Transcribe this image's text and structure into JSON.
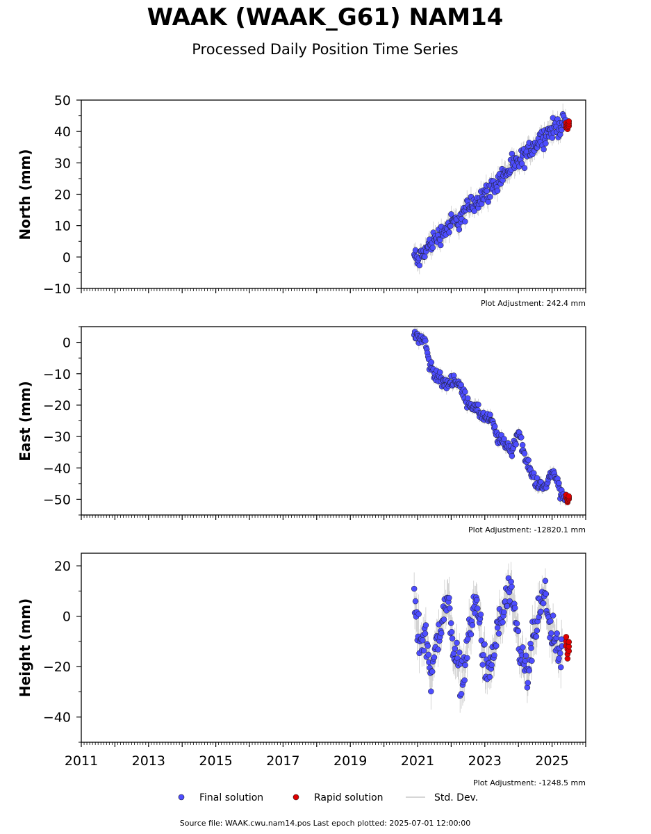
{
  "chart_data": {
    "type": "scatter",
    "title": "WAAK (WAAK_G61) NAM14",
    "subtitle": "Processed Daily Position Time Series",
    "xlim": [
      2011,
      2026
    ],
    "x_tick_labels": [
      "2011",
      "2013",
      "2015",
      "2017",
      "2019",
      "2021",
      "2023",
      "2025"
    ],
    "grid": false,
    "legend_placement": "bottom-center",
    "legend": {
      "final": "Final solution",
      "rapid": "Rapid solution",
      "std": "Std. Dev."
    },
    "colors": {
      "final": "#4d4dff",
      "rapid": "#e00000",
      "std": "#a0a0a0",
      "marker_edge": "#1a1a1a"
    },
    "panels": [
      {
        "ylabel": "North (mm)",
        "ylim": [
          -10,
          50
        ],
        "y_ticks": [
          -10,
          0,
          10,
          20,
          30,
          40,
          50
        ],
        "y_tick_labels": [
          "−10",
          "0",
          "10",
          "20",
          "30",
          "40",
          "50"
        ],
        "adjustment": "Plot Adjustment: 242.4 mm",
        "final_series": {
          "x": [
            2020.9,
            2021.0,
            2021.2,
            2021.4,
            2021.6,
            2021.8,
            2022.0,
            2022.2,
            2022.4,
            2022.6,
            2022.8,
            2023.0,
            2023.2,
            2023.4,
            2023.6,
            2023.8,
            2024.0,
            2024.2,
            2024.4,
            2024.6,
            2024.8,
            2025.0,
            2025.2,
            2025.4
          ],
          "y": [
            0.5,
            -1.5,
            1.5,
            4.5,
            6.5,
            8.5,
            10.5,
            11.5,
            14.0,
            16.5,
            18.5,
            20.0,
            21.5,
            24.5,
            26.5,
            28.5,
            30.0,
            32.0,
            35.0,
            37.0,
            39.0,
            40.5,
            42.0,
            42.5
          ]
        },
        "rapid_series": {
          "x": [
            2025.42,
            2025.46,
            2025.5
          ],
          "y": [
            42.0,
            41.5,
            42.5
          ]
        },
        "std_dev": 2.5
      },
      {
        "ylabel": "East (mm)",
        "ylim": [
          -55,
          5
        ],
        "y_ticks": [
          -50,
          -40,
          -30,
          -20,
          -10,
          0
        ],
        "y_tick_labels": [
          "−50",
          "−40",
          "−30",
          "−20",
          "−10",
          "0"
        ],
        "adjustment": "Plot Adjustment: -12820.1 mm",
        "final_series": {
          "x": [
            2020.9,
            2021.0,
            2021.1,
            2021.2,
            2021.35,
            2021.5,
            2021.7,
            2021.9,
            2022.0,
            2022.2,
            2022.4,
            2022.6,
            2022.8,
            2023.0,
            2023.2,
            2023.4,
            2023.6,
            2023.8,
            2024.0,
            2024.2,
            2024.4,
            2024.6,
            2024.8,
            2024.95,
            2025.1,
            2025.25,
            2025.4
          ],
          "y": [
            2.0,
            2.5,
            1.0,
            1.5,
            -7.0,
            -9.5,
            -12.5,
            -13.5,
            -12.0,
            -12.5,
            -17.5,
            -20.0,
            -22.0,
            -24.0,
            -25.0,
            -31.0,
            -32.0,
            -35.0,
            -28.0,
            -37.0,
            -42.0,
            -45.5,
            -46.5,
            -42.0,
            -41.5,
            -48.5,
            -50.0
          ]
        },
        "rapid_series": {
          "x": [
            2025.42,
            2025.46,
            2025.5
          ],
          "y": [
            -49.0,
            -50.5,
            -49.5
          ]
        },
        "std_dev": 1.5
      },
      {
        "ylabel": "Height (mm)",
        "ylim": [
          -50,
          25
        ],
        "y_ticks": [
          -40,
          -20,
          0,
          20
        ],
        "y_tick_labels": [
          "−40",
          "−20",
          "0",
          "20"
        ],
        "adjustment": "Plot Adjustment: -1248.5 mm",
        "final_series": {
          "x": [
            2020.9,
            2021.0,
            2021.1,
            2021.2,
            2021.3,
            2021.4,
            2021.5,
            2021.6,
            2021.8,
            2021.9,
            2022.0,
            2022.1,
            2022.3,
            2022.4,
            2022.5,
            2022.7,
            2022.8,
            2022.9,
            2023.0,
            2023.1,
            2023.3,
            2023.4,
            2023.5,
            2023.7,
            2023.8,
            2023.9,
            2024.0,
            2024.1,
            2024.3,
            2024.4,
            2024.5,
            2024.7,
            2024.8,
            2024.9,
            2025.0,
            2025.1,
            2025.2,
            2025.3
          ],
          "y": [
            5.0,
            -5.0,
            -10.0,
            -8.0,
            -12.0,
            -22.0,
            -18.0,
            -8.0,
            2.0,
            5.0,
            -2.0,
            -15.0,
            -24.0,
            -20.0,
            -10.0,
            5.0,
            3.0,
            -8.0,
            -20.0,
            -25.0,
            -12.0,
            -5.0,
            0.0,
            8.0,
            5.0,
            -2.0,
            -10.0,
            -18.0,
            -24.0,
            -12.0,
            -5.0,
            5.0,
            6.0,
            2.0,
            -8.0,
            -12.0,
            -18.0,
            -14.0
          ]
        },
        "rapid_series": {
          "x": [
            2025.42,
            2025.46,
            2025.5
          ],
          "y": [
            -10.0,
            -15.0,
            -12.0
          ]
        },
        "std_dev": 6.0
      }
    ]
  },
  "footer": {
    "source_text": "Source file: WAAK.cwu.nam14.pos  Last epoch plotted: 2025-07-01 12:00:00"
  }
}
